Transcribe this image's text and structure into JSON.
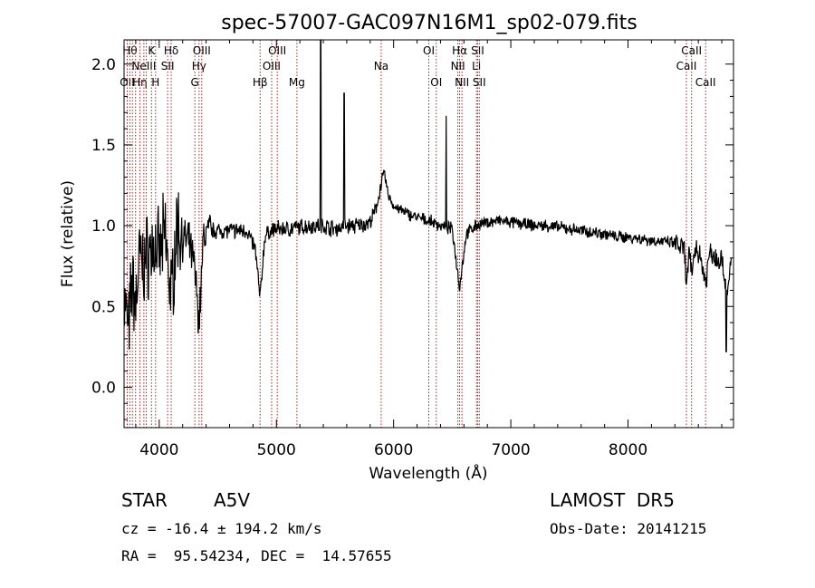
{
  "chart_data": {
    "type": "line",
    "title": "spec-57007-GAC097N16M1_sp02-079.fits",
    "xlabel": "Wavelength (Å)",
    "ylabel": "Flux (relative)",
    "xlim": [
      3700,
      8900
    ],
    "ylim": [
      -0.25,
      2.15
    ],
    "xticks": [
      4000,
      5000,
      6000,
      7000,
      8000
    ],
    "xtick_labels": [
      "4000",
      "5000",
      "6000",
      "7000",
      "8000"
    ],
    "yticks": [
      0.0,
      0.5,
      1.0,
      1.5,
      2.0
    ],
    "ytick_labels": [
      "0.0",
      "0.5",
      "1.0",
      "1.5",
      "2.0"
    ],
    "grid": false,
    "series": [
      {
        "color": "#000000",
        "anchors": {
          "x": [
            3700,
            3740,
            3770,
            3800,
            3830,
            3860,
            3890,
            3930,
            3970,
            4000,
            4050,
            4102,
            4150,
            4200,
            4250,
            4300,
            4340,
            4380,
            4450,
            4550,
            4650,
            4750,
            4820,
            4861,
            4900,
            4950,
            5000,
            5100,
            5200,
            5300,
            5400,
            5500,
            5600,
            5700,
            5800,
            5850,
            5890,
            5920,
            5950,
            6000,
            6100,
            6200,
            6300,
            6400,
            6500,
            6563,
            6620,
            6700,
            6800,
            6900,
            7000,
            7100,
            7200,
            7300,
            7400,
            7500,
            7600,
            7700,
            7800,
            7900,
            8000,
            8100,
            8200,
            8300,
            8400,
            8480,
            8498,
            8520,
            8542,
            8580,
            8620,
            8662,
            8700,
            8750,
            8800,
            8850,
            8880
          ],
          "y": [
            0.55,
            0.35,
            0.65,
            0.5,
            0.8,
            0.75,
            0.8,
            0.85,
            0.88,
            0.8,
            0.95,
            0.55,
            1.0,
            0.92,
            0.9,
            0.75,
            0.4,
            0.95,
            0.97,
            0.97,
            0.97,
            0.97,
            0.85,
            0.55,
            0.93,
            0.97,
            0.98,
            0.98,
            0.99,
            1.0,
            1.0,
            0.98,
            1.0,
            1.0,
            1.02,
            1.1,
            1.25,
            1.33,
            1.2,
            1.12,
            1.08,
            1.05,
            1.03,
            1.0,
            0.98,
            0.62,
            0.95,
            1.0,
            1.02,
            1.03,
            1.02,
            1.01,
            1.0,
            1.0,
            0.99,
            0.98,
            0.97,
            0.96,
            0.95,
            0.93,
            0.93,
            0.92,
            0.91,
            0.9,
            0.89,
            0.85,
            0.62,
            0.82,
            0.7,
            0.88,
            0.8,
            0.65,
            0.85,
            0.8,
            0.8,
            0.55,
            0.8
          ]
        },
        "spikes": [
          {
            "x": 5378,
            "y": 2.15
          },
          {
            "x": 5578,
            "y": 1.82
          },
          {
            "x": 6448,
            "y": 1.68
          },
          {
            "x": 8838,
            "y": 0.22
          }
        ]
      }
    ],
    "spectral_lines": [
      {
        "x": 3727,
        "label": "OII",
        "row": 3
      },
      {
        "x": 3750,
        "label": "Hθ",
        "row": 1
      },
      {
        "x": 3771,
        "label": "",
        "row": 0
      },
      {
        "x": 3798,
        "label": "",
        "row": 0
      },
      {
        "x": 3835,
        "label": "Hη",
        "row": 3
      },
      {
        "x": 3869,
        "label": "NeIII",
        "row": 2
      },
      {
        "x": 3889,
        "label": "",
        "row": 0
      },
      {
        "x": 3934,
        "label": "K",
        "row": 1
      },
      {
        "x": 3969,
        "label": "H",
        "row": 3
      },
      {
        "x": 4072,
        "label": "SII",
        "row": 2
      },
      {
        "x": 4102,
        "label": "Hδ",
        "row": 1
      },
      {
        "x": 4304,
        "label": "G",
        "row": 3
      },
      {
        "x": 4340,
        "label": "Hγ",
        "row": 2
      },
      {
        "x": 4363,
        "label": "OIII",
        "row": 1
      },
      {
        "x": 4861,
        "label": "Hβ",
        "row": 3
      },
      {
        "x": 4959,
        "label": "OIII",
        "row": 2
      },
      {
        "x": 5007,
        "label": "OIII",
        "row": 1
      },
      {
        "x": 5175,
        "label": "Mg",
        "row": 3
      },
      {
        "x": 5894,
        "label": "Na",
        "row": 2
      },
      {
        "x": 6300,
        "label": "OI",
        "row": 1
      },
      {
        "x": 6364,
        "label": "OI",
        "row": 3
      },
      {
        "x": 6548,
        "label": "NII",
        "row": 2
      },
      {
        "x": 6563,
        "label": "Hα",
        "row": 1
      },
      {
        "x": 6583,
        "label": "NII",
        "row": 3
      },
      {
        "x": 6707,
        "label": "Li",
        "row": 2
      },
      {
        "x": 6717,
        "label": "SII",
        "row": 1
      },
      {
        "x": 6731,
        "label": "SII",
        "row": 3
      },
      {
        "x": 8498,
        "label": "CaII",
        "row": 2
      },
      {
        "x": 8542,
        "label": "CaII",
        "row": 1
      },
      {
        "x": 8662,
        "label": "CaII",
        "row": 3
      }
    ],
    "line_color": "#b22222"
  },
  "info": {
    "object_class": "STAR",
    "subclass": "A5V",
    "survey": "LAMOST  DR5",
    "cz": "cz = -16.4 ± 194.2 km/s",
    "obs_date": "Obs-Date: 20141215",
    "coords": "RA =  95.54234, DEC =  14.57655"
  }
}
